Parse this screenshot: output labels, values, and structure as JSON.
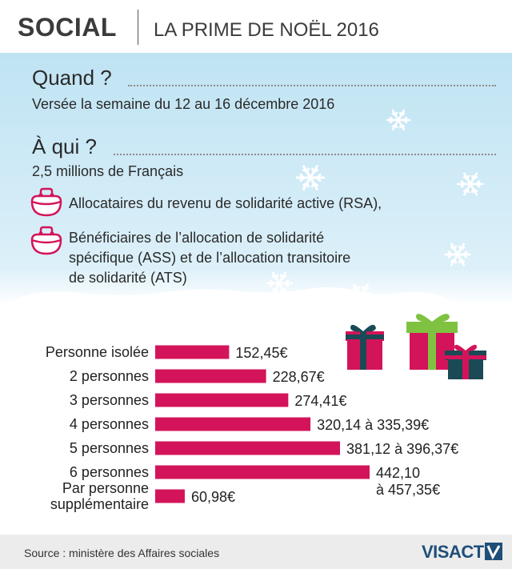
{
  "header": {
    "section": "SOCIAL",
    "title": "LA PRIME DE NOËL 2016"
  },
  "info": {
    "when_heading": "Quand ?",
    "when_text": "Versée la semaine du 12 au 16 décembre 2016",
    "who_heading": "À qui ?",
    "who_text": "2,5 millions de Français",
    "bullets": [
      [
        "Allocataires du revenu de solidarité active (RSA),"
      ],
      [
        "Bénéficiaires de l’allocation de solidarité",
        "spécifique (ASS) et de l’allocation transitoire",
        "de solidarité (ATS)"
      ]
    ]
  },
  "icons": {
    "bullet": "purse-icon",
    "decor": [
      "snowflake-icon",
      "gift-icon"
    ]
  },
  "colors": {
    "bar": "#d4145a",
    "sky_top": "#bfe3f3",
    "sky_bottom": "#ffffff",
    "gift_red": "#d4145a",
    "gift_green": "#7fc241",
    "gift_teal": "#1a4a55"
  },
  "chart_data": {
    "type": "bar",
    "orientation": "horizontal",
    "categories": [
      [
        "Personne isolée"
      ],
      [
        "2 personnes"
      ],
      [
        "3 personnes"
      ],
      [
        "4 personnes"
      ],
      [
        "5 personnes"
      ],
      [
        "6 personnes"
      ],
      [
        "Par personne",
        "supplémentaire"
      ]
    ],
    "values": [
      152.45,
      228.67,
      274.41,
      320.14,
      381.12,
      442.1,
      60.98
    ],
    "value_max": [
      null,
      null,
      null,
      335.39,
      396.37,
      457.35,
      null
    ],
    "labels": [
      [
        "152,45€"
      ],
      [
        "228,67€"
      ],
      [
        "274,41€"
      ],
      [
        "320,14 à 335,39€"
      ],
      [
        "381,12 à 396,37€"
      ],
      [
        "442,10",
        "à 457,35€"
      ],
      [
        "60,98€"
      ]
    ],
    "xlim": [
      0,
      442.1
    ],
    "grid": false,
    "legend": "none"
  },
  "footer": {
    "source": "Source : ministère des Affaires sociales",
    "brand": "VISACTU"
  }
}
